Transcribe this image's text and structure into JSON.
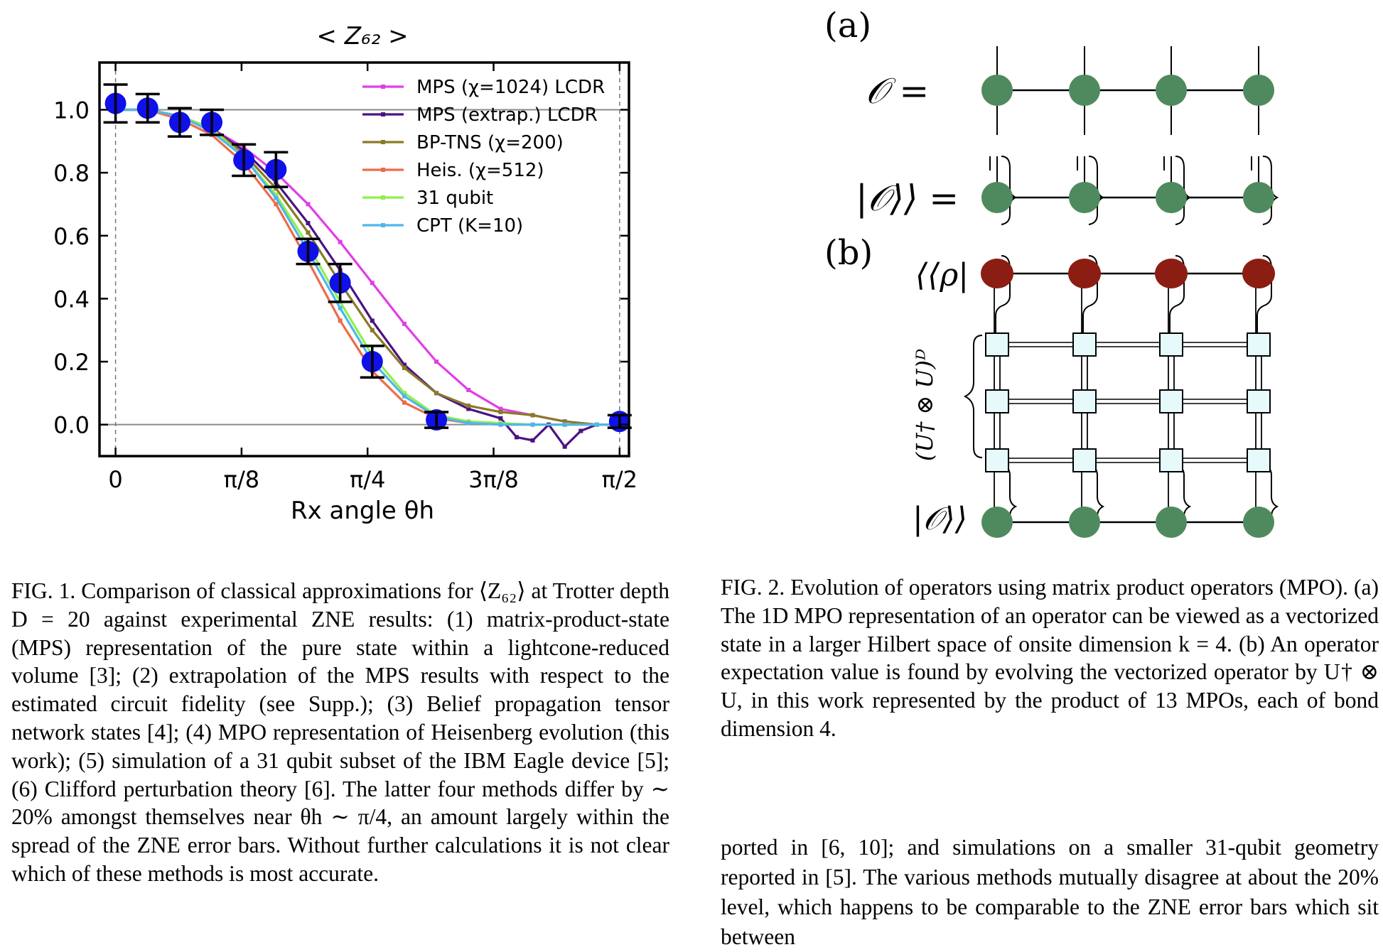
{
  "figure1": {
    "title": "< Z₆₂ >",
    "xlabel": "Rx angle θh",
    "caption": "FIG. 1. Comparison of classical approximations for ⟨Z₆₂⟩ at Trotter depth D = 20 against experimental ZNE results: (1) matrix-product-state (MPS) representation of the pure state within a lightcone-reduced volume [3]; (2) extrapolation of the MPS results with respect to the estimated circuit fidelity (see Supp.); (3) Belief propagation tensor network states [4]; (4) MPO representation of Heisenberg evolution (this work); (5) simulation of a 31 qubit subset of the IBM Eagle device [5]; (6) Clifford perturbation theory [6]. The latter four methods differ by ∼ 20% amongst themselves near θh ∼ π/4, an amount largely within the spread of the ZNE error bars. Without further calculations it is not clear which of these methods is most accurate."
  },
  "chart_data": {
    "type": "line",
    "title": "< Z₆₂ >",
    "xlabel": "Rx angle θh",
    "ylabel": "",
    "xlim": [
      -0.05,
      1.6
    ],
    "ylim": [
      -0.1,
      1.15
    ],
    "xticks": [
      0,
      0.3927,
      0.7854,
      1.1781,
      1.5708
    ],
    "xtick_labels": [
      "0",
      "π/8",
      "π/4",
      "3π/8",
      "π/2"
    ],
    "yticks": [
      0.0,
      0.2,
      0.4,
      0.6,
      0.8,
      1.0
    ],
    "ytick_labels": [
      "0.0",
      "0.2",
      "0.4",
      "0.6",
      "0.8",
      "1.0"
    ],
    "reference_lines": [
      0.0,
      1.0
    ],
    "legend_position": "top-right",
    "series": [
      {
        "name": "MPS (χ=1024) LCDR",
        "color": "#e23de6",
        "x": [
          0,
          0.1,
          0.2,
          0.3,
          0.4,
          0.5,
          0.6,
          0.7,
          0.8,
          0.9,
          1.0,
          1.1,
          1.2,
          1.3,
          1.4,
          1.5,
          1.5708
        ],
        "y": [
          1.0,
          1.0,
          0.98,
          0.94,
          0.88,
          0.8,
          0.7,
          0.58,
          0.45,
          0.32,
          0.2,
          0.11,
          0.05,
          0.03,
          0.01,
          0.0,
          0.0
        ]
      },
      {
        "name": "MPS (extrap.) LCDR",
        "color": "#4b1283",
        "x": [
          0,
          0.1,
          0.2,
          0.3,
          0.4,
          0.5,
          0.6,
          0.7,
          0.8,
          0.9,
          1.0,
          1.1,
          1.2,
          1.25,
          1.3,
          1.35,
          1.4,
          1.45,
          1.5,
          1.5708
        ],
        "y": [
          1.0,
          1.0,
          0.98,
          0.94,
          0.87,
          0.77,
          0.64,
          0.49,
          0.33,
          0.19,
          0.1,
          0.05,
          0.02,
          -0.04,
          -0.05,
          0.0,
          -0.07,
          -0.02,
          0.0,
          0.0
        ]
      },
      {
        "name": "BP-TNS (χ=200)",
        "color": "#8a7a26",
        "x": [
          0,
          0.1,
          0.2,
          0.3,
          0.4,
          0.5,
          0.6,
          0.7,
          0.8,
          0.9,
          1.0,
          1.1,
          1.2,
          1.3,
          1.4,
          1.5,
          1.5708
        ],
        "y": [
          1.0,
          1.0,
          0.98,
          0.94,
          0.86,
          0.75,
          0.61,
          0.45,
          0.3,
          0.18,
          0.1,
          0.06,
          0.04,
          0.03,
          0.01,
          0.0,
          0.0
        ]
      },
      {
        "name": "Heis. (χ=512)",
        "color": "#ee6b4a",
        "x": [
          0,
          0.1,
          0.2,
          0.3,
          0.4,
          0.5,
          0.6,
          0.7,
          0.8,
          0.9,
          1.0,
          1.1,
          1.2,
          1.3,
          1.4,
          1.5,
          1.5708
        ],
        "y": [
          1.0,
          1.0,
          0.97,
          0.92,
          0.83,
          0.7,
          0.52,
          0.33,
          0.17,
          0.07,
          0.02,
          0.005,
          0.0,
          0.0,
          0.0,
          0.0,
          0.0
        ]
      },
      {
        "name": "31 qubit",
        "color": "#8ef04a",
        "x": [
          0,
          0.1,
          0.2,
          0.3,
          0.4,
          0.5,
          0.6,
          0.7,
          0.8,
          0.9,
          1.0,
          1.1,
          1.2,
          1.3,
          1.4,
          1.5,
          1.5708
        ],
        "y": [
          1.0,
          1.0,
          0.98,
          0.94,
          0.85,
          0.73,
          0.57,
          0.39,
          0.22,
          0.1,
          0.03,
          0.01,
          0.005,
          0.0,
          0.0,
          0.0,
          0.0
        ]
      },
      {
        "name": "CPT (K=10)",
        "color": "#4fb6ec",
        "x": [
          0,
          0.1,
          0.2,
          0.3,
          0.4,
          0.5,
          0.6,
          0.7,
          0.8,
          0.9,
          1.0,
          1.1,
          1.2,
          1.3,
          1.4,
          1.5,
          1.5708
        ],
        "y": [
          1.0,
          1.0,
          0.98,
          0.93,
          0.85,
          0.72,
          0.55,
          0.37,
          0.2,
          0.09,
          0.025,
          0.005,
          0.0,
          0.0,
          0.0,
          0.0,
          0.0
        ]
      }
    ],
    "experiment": {
      "name": "ZNE",
      "color": "#1010e8",
      "x": [
        0,
        0.1,
        0.2,
        0.3,
        0.4,
        0.5,
        0.6,
        0.7,
        0.8,
        1.0,
        1.5708
      ],
      "y": [
        1.02,
        1.005,
        0.96,
        0.96,
        0.84,
        0.81,
        0.55,
        0.45,
        0.2,
        0.015,
        0.01
      ],
      "err": [
        0.06,
        0.045,
        0.045,
        0.04,
        0.05,
        0.055,
        0.04,
        0.06,
        0.05,
        0.025,
        0.02
      ]
    }
  },
  "figure2": {
    "label_a": "(a)",
    "label_b": "(b)",
    "op_eq": "𝒪 =",
    "vec_eq": "|𝒪⟩⟩ =",
    "rho_label": "⟨⟨ρ|",
    "bottom_label": "|𝒪⟩⟩",
    "side_label": "(U† ⊗ U)ᴰ",
    "node_green": "#4f8a5f",
    "node_red": "#8c1d12",
    "box_fill": "#e6fafc",
    "caption": "FIG. 2. Evolution of operators using matrix product operators (MPO). (a) The 1D MPO representation of an operator can be viewed as a vectorized state in a larger Hilbert space of onsite dimension k = 4. (b) An operator expectation value is found by evolving the vectorized operator by U† ⊗ U, in this work represented by the product of 13 MPOs, each of bond dimension 4."
  },
  "body": {
    "text": "ported in [6, 10]; and simulations on a smaller 31-qubit geometry reported in [5]. The various methods mutually disagree at about the 20% level, which happens to be comparable to the ZNE error bars which sit between"
  }
}
